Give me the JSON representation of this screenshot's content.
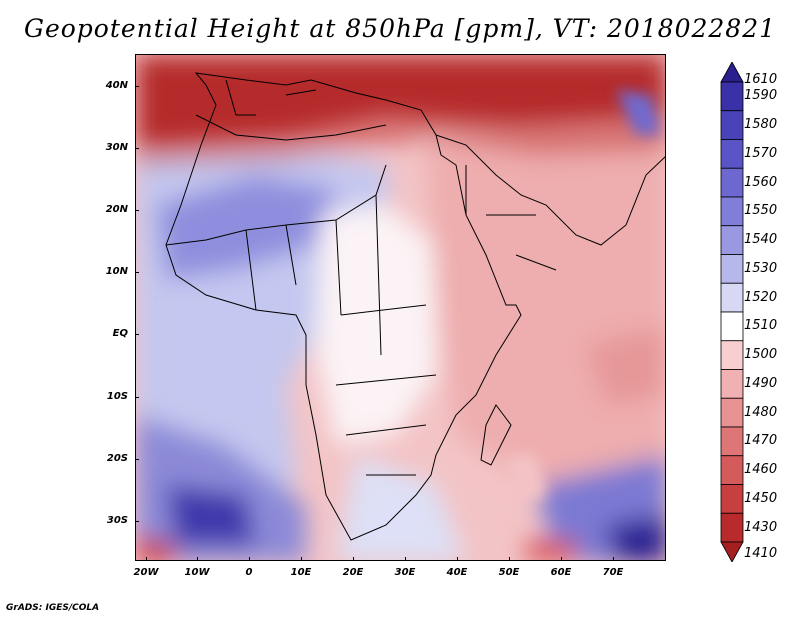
{
  "title": "Geopotential Height at 850hPa [gpm], VT: 2018022821",
  "footer": "GrADS: IGES/COLA",
  "map": {
    "lat_labels": [
      "40N",
      "30N",
      "20N",
      "10N",
      "EQ",
      "10S",
      "20S",
      "30S"
    ],
    "lon_labels": [
      "20W",
      "10W",
      "0",
      "10E",
      "20E",
      "30E",
      "40E",
      "50E",
      "60E",
      "70E"
    ]
  },
  "colorbar": {
    "labels": [
      "1610",
      "1590",
      "1580",
      "1570",
      "1560",
      "1550",
      "1540",
      "1530",
      "1520",
      "1510",
      "1500",
      "1490",
      "1480",
      "1470",
      "1460",
      "1450",
      "1430",
      "1410"
    ],
    "colors": [
      "#2a1f8f",
      "#3a30a8",
      "#4a42b8",
      "#5a55c6",
      "#6c68d0",
      "#807ed8",
      "#9a98e0",
      "#b6b7ea",
      "#d6d8f4",
      "#ffffff",
      "#f8cfd0",
      "#f1b0b1",
      "#e89293",
      "#de7576",
      "#d45a5b",
      "#c83f40",
      "#b82a2b",
      "#a51f20"
    ]
  }
}
